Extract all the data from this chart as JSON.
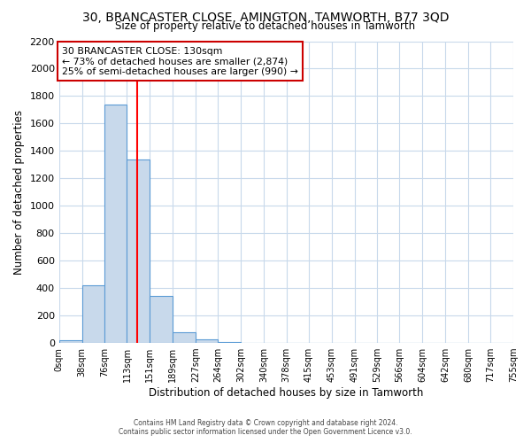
{
  "title": "30, BRANCASTER CLOSE, AMINGTON, TAMWORTH, B77 3QD",
  "subtitle": "Size of property relative to detached houses in Tamworth",
  "xlabel": "Distribution of detached houses by size in Tamworth",
  "ylabel": "Number of detached properties",
  "bin_edges": [
    0,
    38,
    76,
    113,
    151,
    189,
    227,
    264,
    302,
    340,
    378,
    415,
    453,
    491,
    529,
    566,
    604,
    642,
    680,
    717,
    755
  ],
  "bar_heights": [
    20,
    420,
    1740,
    1340,
    340,
    80,
    25,
    10,
    0,
    0,
    0,
    0,
    0,
    0,
    0,
    0,
    0,
    0,
    0,
    0
  ],
  "bar_color": "#c8d9eb",
  "bar_edgecolor": "#5b9bd5",
  "red_line_x": 130,
  "ylim": [
    0,
    2200
  ],
  "yticks": [
    0,
    200,
    400,
    600,
    800,
    1000,
    1200,
    1400,
    1600,
    1800,
    2000,
    2200
  ],
  "xtick_labels": [
    "0sqm",
    "38sqm",
    "76sqm",
    "113sqm",
    "151sqm",
    "189sqm",
    "227sqm",
    "264sqm",
    "302sqm",
    "340sqm",
    "378sqm",
    "415sqm",
    "453sqm",
    "491sqm",
    "529sqm",
    "566sqm",
    "604sqm",
    "642sqm",
    "680sqm",
    "717sqm",
    "755sqm"
  ],
  "annotation_title": "30 BRANCASTER CLOSE: 130sqm",
  "annotation_line1": "← 73% of detached houses are smaller (2,874)",
  "annotation_line2": "25% of semi-detached houses are larger (990) →",
  "annotation_box_color": "#ffffff",
  "annotation_box_edgecolor": "#cc0000",
  "grid_color": "#c8d9eb",
  "background_color": "#ffffff",
  "footer1": "Contains HM Land Registry data © Crown copyright and database right 2024.",
  "footer2": "Contains public sector information licensed under the Open Government Licence v3.0."
}
